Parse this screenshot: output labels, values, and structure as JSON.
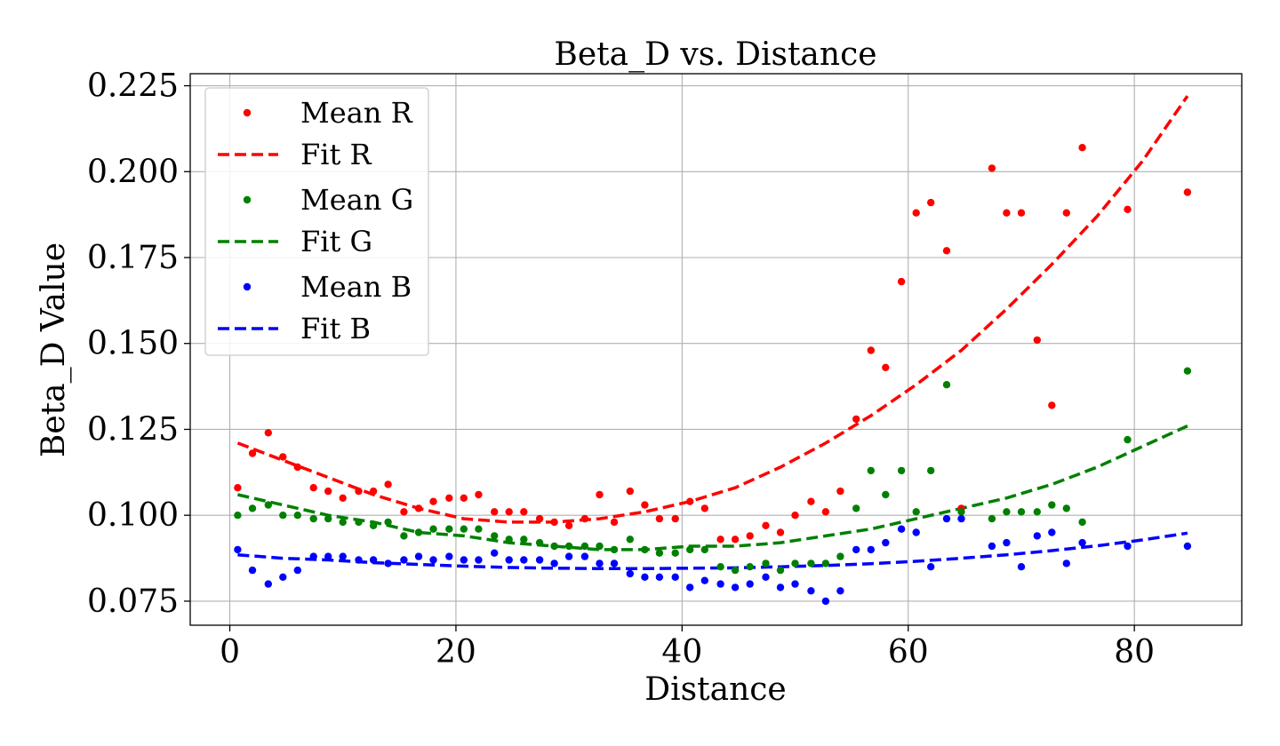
{
  "chart_data": {
    "type": "scatter",
    "title": "Beta_D vs. Distance",
    "xlabel": "Distance",
    "ylabel": "Beta_D Value",
    "xlim": [
      -3.5,
      89.5
    ],
    "ylim": [
      0.068,
      0.2285
    ],
    "xticks": [
      0,
      20,
      40,
      60,
      80
    ],
    "xtick_labels": [
      "0",
      "20",
      "40",
      "60",
      "80"
    ],
    "yticks": [
      0.075,
      0.1,
      0.125,
      0.15,
      0.175,
      0.2,
      0.225
    ],
    "ytick_labels": [
      "0.075",
      "0.100",
      "0.125",
      "0.150",
      "0.175",
      "0.200",
      "0.225"
    ],
    "grid": true,
    "legend_position": "upper-left",
    "x": [
      0.7,
      2.0,
      3.4,
      4.7,
      6.0,
      7.4,
      8.7,
      10.0,
      11.4,
      12.7,
      14.0,
      15.4,
      16.7,
      18.0,
      19.4,
      20.7,
      22.0,
      23.4,
      24.7,
      26.0,
      27.4,
      28.7,
      30.0,
      31.4,
      32.7,
      34.0,
      35.4,
      36.7,
      38.0,
      39.4,
      40.7,
      42.0,
      43.4,
      44.7,
      46.0,
      47.4,
      48.7,
      50.0,
      51.4,
      52.7,
      54.0,
      55.4,
      56.7,
      58.0,
      59.4,
      60.7,
      62.0,
      63.4,
      64.7,
      67.4,
      68.7,
      70.0,
      71.4,
      72.7,
      74.0,
      75.4,
      79.4,
      84.7
    ],
    "series": [
      {
        "name": "Mean R",
        "fit_name": "Fit R",
        "color": "#ff0000",
        "values": [
          0.108,
          0.118,
          0.124,
          0.117,
          0.114,
          0.108,
          0.107,
          0.105,
          0.107,
          0.107,
          0.109,
          0.101,
          0.102,
          0.104,
          0.105,
          0.105,
          0.106,
          0.101,
          0.101,
          0.101,
          0.099,
          0.098,
          0.097,
          0.099,
          0.106,
          0.098,
          0.107,
          0.103,
          0.099,
          0.099,
          0.104,
          0.102,
          0.093,
          0.093,
          0.094,
          0.097,
          0.095,
          0.1,
          0.104,
          0.101,
          0.107,
          0.128,
          0.148,
          0.143,
          0.168,
          0.188,
          0.191,
          0.177,
          0.102,
          0.201,
          0.188,
          0.188,
          0.151,
          0.132,
          0.188,
          0.207,
          0.189,
          0.194
        ],
        "fit": {
          "x": [
            0.7,
            4.7,
            8.7,
            12.7,
            16.7,
            20.7,
            24.7,
            28.7,
            32.7,
            36.7,
            40.7,
            44.7,
            48.7,
            52.7,
            56.7,
            60.7,
            64.7,
            68.7,
            72.7,
            76.7,
            80.7,
            84.7
          ],
          "values": [
            0.121,
            0.116,
            0.111,
            0.106,
            0.102,
            0.099,
            0.098,
            0.098,
            0.099,
            0.101,
            0.104,
            0.108,
            0.114,
            0.121,
            0.129,
            0.138,
            0.148,
            0.16,
            0.173,
            0.187,
            0.203,
            0.222
          ]
        }
      },
      {
        "name": "Mean G",
        "fit_name": "Fit G",
        "color": "#008000",
        "values": [
          0.1,
          0.102,
          0.103,
          0.1,
          0.1,
          0.099,
          0.099,
          0.098,
          0.098,
          0.097,
          0.098,
          0.094,
          0.095,
          0.096,
          0.096,
          0.096,
          0.096,
          0.094,
          0.093,
          0.093,
          0.092,
          0.091,
          0.091,
          0.091,
          0.091,
          0.09,
          0.093,
          0.09,
          0.089,
          0.089,
          0.09,
          0.09,
          0.085,
          0.084,
          0.085,
          0.086,
          0.084,
          0.086,
          0.086,
          0.086,
          0.088,
          0.102,
          0.113,
          0.106,
          0.113,
          0.101,
          0.113,
          0.138,
          0.101,
          0.099,
          0.101,
          0.101,
          0.101,
          0.103,
          0.102,
          0.098,
          0.122,
          0.142
        ],
        "fit": {
          "x": [
            0.7,
            4.7,
            8.7,
            12.7,
            16.7,
            20.7,
            24.7,
            28.7,
            32.7,
            36.7,
            40.7,
            44.7,
            48.7,
            52.7,
            56.7,
            60.7,
            64.7,
            68.7,
            72.7,
            76.7,
            80.7,
            84.7
          ],
          "values": [
            0.106,
            0.103,
            0.1,
            0.098,
            0.095,
            0.094,
            0.092,
            0.091,
            0.09,
            0.09,
            0.091,
            0.091,
            0.092,
            0.094,
            0.096,
            0.099,
            0.102,
            0.105,
            0.109,
            0.114,
            0.12,
            0.126
          ]
        }
      },
      {
        "name": "Mean B",
        "fit_name": "Fit B",
        "color": "#0000ff",
        "values": [
          0.09,
          0.084,
          0.08,
          0.082,
          0.084,
          0.088,
          0.088,
          0.088,
          0.087,
          0.087,
          0.086,
          0.087,
          0.088,
          0.087,
          0.088,
          0.087,
          0.087,
          0.089,
          0.087,
          0.087,
          0.087,
          0.086,
          0.088,
          0.088,
          0.086,
          0.086,
          0.083,
          0.082,
          0.082,
          0.082,
          0.079,
          0.081,
          0.08,
          0.079,
          0.08,
          0.082,
          0.079,
          0.08,
          0.078,
          0.075,
          0.078,
          0.09,
          0.09,
          0.092,
          0.096,
          0.095,
          0.085,
          0.099,
          0.099,
          0.091,
          0.092,
          0.085,
          0.094,
          0.095,
          0.086,
          0.092,
          0.091,
          0.091
        ],
        "fit": {
          "x": [
            0.7,
            4.7,
            8.7,
            12.7,
            16.7,
            20.7,
            24.7,
            28.7,
            32.7,
            36.7,
            40.7,
            44.7,
            48.7,
            52.7,
            56.7,
            60.7,
            64.7,
            68.7,
            72.7,
            76.7,
            80.7,
            84.7
          ],
          "values": [
            0.0885,
            0.0875,
            0.087,
            0.0862,
            0.0857,
            0.0852,
            0.0848,
            0.0846,
            0.0845,
            0.0845,
            0.0846,
            0.0847,
            0.085,
            0.0854,
            0.0859,
            0.0866,
            0.0875,
            0.0885,
            0.0897,
            0.0911,
            0.0928,
            0.0948
          ]
        }
      }
    ]
  }
}
